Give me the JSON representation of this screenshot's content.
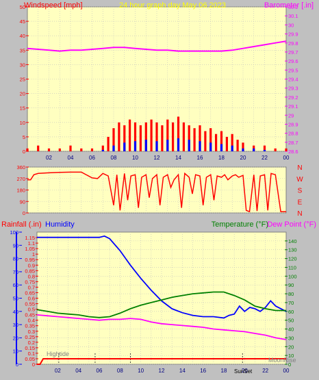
{
  "header": {
    "left_title": "Windspeed [mph]",
    "center_title": "24 hour graph day   May 06 2023",
    "right_title": "Barometer [.in]"
  },
  "lower_header": {
    "rainfall_label": "Rainfall (.in)",
    "humidity_label": "Humidity",
    "temperature_label": "Temperature (°F)",
    "dewpoint_label": "Dew Point (°F)"
  },
  "direction_labels": [
    "N",
    "W",
    "S",
    "E",
    "N"
  ],
  "events": {
    "hightide_label": "Hightide",
    "sunset_label": "SunSet",
    "moonrise_label": "MoonRise"
  },
  "colors": {
    "plot_bg": "#ffffc0",
    "frame": "#c0c0c0",
    "wind": "#ff0000",
    "wind_avg": "#0000ff",
    "wind_low": "#008000",
    "barometer": "#ff00ff",
    "direction": "#ff0000",
    "rain": "#ff0000",
    "humidity": "#0000ff",
    "temperature": "#008000",
    "dewpoint": "#ff00ff",
    "title_red": "#ff0000",
    "title_yellow": "#ffff00",
    "title_blue": "#0000ff",
    "title_green": "#008000",
    "grid": "#c0c0c0"
  },
  "chart_data": [
    {
      "type": "bar",
      "title": "24 hour graph day   May 06 2023",
      "ylabel": "Windspeed [mph]",
      "ylim": [
        0,
        50
      ],
      "yticks": [
        "0",
        "5",
        "10",
        "15",
        "20",
        "25",
        "30",
        "35",
        "40",
        "45",
        "50"
      ],
      "x_ticks": [
        "02",
        "04",
        "06",
        "08",
        "10",
        "12",
        "14",
        "16",
        "18",
        "20",
        "22",
        "00"
      ],
      "x_hours": [
        0,
        24
      ],
      "series": [
        {
          "name": "Windspeed [mph]",
          "x": [
            0,
            1,
            2,
            3,
            4,
            5,
            6,
            7,
            7.5,
            8,
            8.5,
            9,
            9.5,
            10,
            10.5,
            11,
            11.5,
            12,
            12.5,
            13,
            13.5,
            14,
            14.5,
            15,
            15.5,
            16,
            16.5,
            17,
            17.5,
            18,
            18.5,
            19,
            19.5,
            20,
            21,
            22,
            23,
            24
          ],
          "values": [
            1,
            2,
            1,
            1,
            2,
            1,
            1,
            2,
            5,
            8,
            10,
            9,
            11,
            10,
            9,
            10,
            11,
            10,
            9,
            11,
            10,
            12,
            10,
            9,
            8,
            9,
            7,
            8,
            6,
            7,
            5,
            6,
            4,
            3,
            2,
            2,
            1,
            1
          ]
        },
        {
          "name": "Average",
          "x": [
            7,
            8,
            9,
            10,
            11,
            12,
            13,
            14,
            15,
            16,
            17,
            18,
            19,
            20,
            21,
            22
          ],
          "values": [
            0.5,
            2,
            3,
            3.5,
            4,
            3.5,
            4,
            4.5,
            4,
            3.5,
            3,
            2.5,
            2,
            1,
            1,
            0.5
          ]
        }
      ],
      "right_axis": {
        "label": "Barometer [.in]",
        "ylim": [
          28.6,
          30.2
        ],
        "yticks": [
          "28.6",
          "28.7",
          "28.8",
          "28.9",
          "29",
          "29.1",
          "29.2",
          "29.3",
          "29.4",
          "29.5",
          "29.6",
          "29.7",
          "29.8",
          "29.9",
          "30",
          "30.1",
          "30.2"
        ],
        "x": [
          0,
          1,
          2,
          3,
          4,
          5,
          6,
          7,
          8,
          9,
          10,
          11,
          12,
          13,
          14,
          15,
          16,
          17,
          18,
          19,
          20,
          21,
          22,
          23,
          24
        ],
        "values": [
          29.74,
          29.73,
          29.72,
          29.71,
          29.72,
          29.72,
          29.73,
          29.74,
          29.75,
          29.75,
          29.74,
          29.73,
          29.72,
          29.72,
          29.71,
          29.71,
          29.71,
          29.71,
          29.71,
          29.72,
          29.74,
          29.76,
          29.78,
          29.8,
          29.82
        ]
      }
    },
    {
      "type": "line",
      "title": "",
      "ylabel": "",
      "ylim": [
        0,
        360
      ],
      "yticks": [
        "0",
        "90",
        "180",
        "270",
        "360"
      ],
      "x_hours": [
        0,
        24
      ],
      "series": [
        {
          "name": "",
          "x": [
            0,
            0.3,
            0.6,
            1,
            2,
            3,
            4,
            5,
            6,
            6.5,
            7,
            7.5,
            8,
            8.3,
            8.6,
            9,
            9.3,
            9.6,
            10,
            10.3,
            10.6,
            11,
            11.3,
            11.6,
            12,
            12.3,
            12.6,
            13,
            13.3,
            13.6,
            14,
            14.3,
            14.6,
            15,
            15.3,
            15.6,
            16,
            16.3,
            16.6,
            17,
            17.3,
            17.6,
            18,
            18.3,
            18.6,
            19,
            19.3,
            19.6,
            20,
            20.3,
            20.6,
            21,
            21.3,
            21.6,
            22,
            22.3,
            22.6,
            23,
            23.5,
            24
          ],
          "values": [
            260,
            260,
            300,
            310,
            315,
            318,
            320,
            320,
            275,
            270,
            310,
            290,
            60,
            300,
            20,
            310,
            100,
            290,
            300,
            40,
            280,
            300,
            120,
            270,
            300,
            60,
            280,
            300,
            200,
            260,
            300,
            40,
            310,
            280,
            150,
            300,
            290,
            60,
            280,
            300,
            100,
            290,
            280,
            300,
            260,
            290,
            300,
            280,
            295,
            20,
            10,
            300,
            15,
            290,
            300,
            20,
            310,
            300,
            10,
            10
          ]
        }
      ]
    },
    {
      "type": "line",
      "title": "",
      "ylabel": "Rainfall (.in)",
      "ylim": [
        0,
        1.2
      ],
      "yticks": [
        "0",
        "0.05",
        "0.1",
        "0.15",
        "0.2",
        "0.25",
        "0.3",
        "0.35",
        "0.4",
        "0.45",
        "0.5",
        "0.55",
        "0.6",
        "0.65",
        "0.7",
        "0.75",
        "0.8",
        "0.85",
        "0.9",
        "0.95",
        "1",
        "1.05",
        "1.1",
        "1.15"
      ],
      "x_ticks": [
        "02",
        "04",
        "06",
        "08",
        "10",
        "12",
        "14",
        "16",
        "18",
        "20",
        "22",
        "00"
      ],
      "x_hours": [
        0,
        24
      ],
      "left_outer_axis": {
        "label": "Humidity",
        "ylim": [
          0,
          100
        ],
        "yticks": [
          "0",
          "10",
          "20",
          "30",
          "40",
          "50",
          "60",
          "70",
          "80",
          "90",
          "100"
        ]
      },
      "right_axis": {
        "label": "Temperature (°F)",
        "ylim": [
          0,
          150
        ],
        "yticks": [
          "0",
          "10",
          "20",
          "30",
          "40",
          "50",
          "60",
          "70",
          "80",
          "90",
          "100",
          "110",
          "120",
          "130",
          "140"
        ]
      },
      "series": [
        {
          "name": "Rainfall (.in)",
          "x": [
            0,
            0.3,
            0.6,
            24
          ],
          "values": [
            0,
            0,
            0.05,
            0.05
          ]
        },
        {
          "name": "Humidity",
          "x": [
            0,
            1,
            2,
            3,
            4,
            5,
            6,
            6.5,
            7,
            8,
            9,
            10,
            11,
            12,
            13,
            14,
            15,
            16,
            17,
            18,
            18.5,
            19,
            19.5,
            20,
            20.5,
            21,
            21.5,
            22,
            22.5,
            23,
            23.5,
            24
          ],
          "values": [
            96,
            96,
            96,
            96,
            96,
            96,
            96,
            97,
            95,
            86,
            75,
            65,
            56,
            48,
            42,
            39,
            37,
            36,
            36,
            35,
            37,
            38,
            44,
            40,
            43,
            42,
            40,
            43,
            48,
            44,
            42,
            40
          ]
        },
        {
          "name": "Temperature (°F)",
          "x": [
            0,
            1,
            2,
            3,
            4,
            5,
            6,
            7,
            8,
            9,
            10,
            11,
            12,
            13,
            14,
            15,
            16,
            17,
            18,
            19,
            20,
            21,
            22,
            23,
            24
          ],
          "values": [
            62,
            60,
            58,
            57,
            56,
            54,
            53,
            54,
            58,
            63,
            67,
            70,
            73,
            76,
            78,
            80,
            81,
            82,
            82,
            78,
            73,
            66,
            63,
            61,
            61
          ]
        },
        {
          "name": "Dew Point (°F)",
          "x": [
            0,
            1,
            2,
            3,
            4,
            5,
            6,
            7,
            8,
            9,
            10,
            11,
            12,
            13,
            14,
            15,
            16,
            17,
            18,
            19,
            20,
            21,
            22,
            23,
            24
          ],
          "values": [
            56,
            55,
            54,
            53,
            52,
            51,
            50,
            51,
            51,
            52,
            51,
            48,
            46,
            45,
            44,
            43,
            42,
            40,
            39,
            38,
            37,
            35,
            33,
            30,
            28
          ]
        }
      ]
    }
  ]
}
